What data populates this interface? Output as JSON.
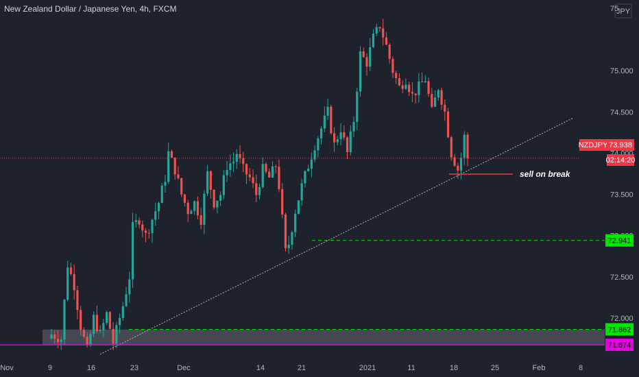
{
  "chart_data": {
    "type": "candlestick",
    "title": "New Zealand Dollar / Japanese Yen, 4h, FXCM",
    "symbol": "NZDJPY",
    "currency_badge": "JPY",
    "last_price": "73.938",
    "countdown": "02:14:20",
    "y_ticks": [
      "75.000",
      "74.500",
      "74.000",
      "73.500",
      "73.000",
      "72.500",
      "72.000"
    ],
    "y_top_partial": "75",
    "x_ticks": [
      "Nov",
      "9",
      "16",
      "23",
      "Dec",
      "14",
      "21",
      "2021",
      "11",
      "18",
      "25",
      "Feb",
      "8"
    ],
    "ylim": [
      71.55,
      75.75
    ],
    "levels": [
      {
        "price": 72.941,
        "label": "72.941",
        "color": "#00e600"
      },
      {
        "price": 71.862,
        "label": "71.862",
        "color": "#00e600"
      },
      {
        "price": 71.674,
        "label": "71.674",
        "color": "#e600e6"
      }
    ],
    "annotation": "sell on break",
    "colors": {
      "up": "#26a69a",
      "down": "#ef5350",
      "background": "#1e222d",
      "last_price": "#f23645",
      "trendline": "#b2b5be"
    },
    "close_path": [
      [
        0,
        71.8
      ],
      [
        3,
        71.75
      ],
      [
        5,
        72.65
      ],
      [
        7,
        72.4
      ],
      [
        9,
        71.9
      ],
      [
        11,
        71.6
      ],
      [
        13,
        72.0
      ],
      [
        15,
        71.8
      ],
      [
        17,
        72.05
      ],
      [
        19,
        71.7
      ],
      [
        20,
        71.85
      ],
      [
        22,
        72.15
      ],
      [
        24,
        72.5
      ],
      [
        25,
        73.1
      ],
      [
        27,
        73.2
      ],
      [
        29,
        73.0
      ],
      [
        31,
        73.2
      ],
      [
        33,
        73.4
      ],
      [
        35,
        73.7
      ],
      [
        36,
        74.0
      ],
      [
        38,
        73.8
      ],
      [
        40,
        73.5
      ],
      [
        42,
        73.3
      ],
      [
        44,
        73.4
      ],
      [
        46,
        73.2
      ],
      [
        48,
        73.75
      ],
      [
        50,
        73.4
      ],
      [
        52,
        73.5
      ],
      [
        54,
        73.85
      ],
      [
        56,
        73.9
      ],
      [
        57,
        74.0
      ],
      [
        59,
        73.8
      ],
      [
        61,
        73.7
      ],
      [
        63,
        73.5
      ],
      [
        65,
        73.8
      ],
      [
        67,
        73.7
      ],
      [
        69,
        73.85
      ],
      [
        70,
        73.6
      ],
      [
        72,
        72.8
      ],
      [
        73,
        72.9
      ],
      [
        75,
        73.3
      ],
      [
        77,
        73.6
      ],
      [
        79,
        73.85
      ],
      [
        81,
        74.1
      ],
      [
        83,
        74.3
      ],
      [
        85,
        74.5
      ],
      [
        87,
        74.1
      ],
      [
        89,
        74.3
      ],
      [
        91,
        74.0
      ],
      [
        93,
        74.4
      ],
      [
        95,
        75.2
      ],
      [
        97,
        75.1
      ],
      [
        99,
        75.4
      ],
      [
        101,
        75.55
      ],
      [
        103,
        75.3
      ],
      [
        105,
        75.0
      ],
      [
        107,
        74.8
      ],
      [
        109,
        74.9
      ],
      [
        111,
        74.7
      ],
      [
        113,
        74.8
      ],
      [
        115,
        74.9
      ],
      [
        117,
        74.5
      ],
      [
        119,
        74.8
      ],
      [
        121,
        74.5
      ],
      [
        123,
        74.0
      ],
      [
        125,
        73.8
      ],
      [
        126,
        73.95
      ],
      [
        127,
        74.2
      ],
      [
        128,
        73.94
      ]
    ],
    "trendline": {
      "from": [
        71.56,
        15
      ],
      "to": [
        74.43,
        129
      ],
      "x_units": "candle-index"
    }
  }
}
